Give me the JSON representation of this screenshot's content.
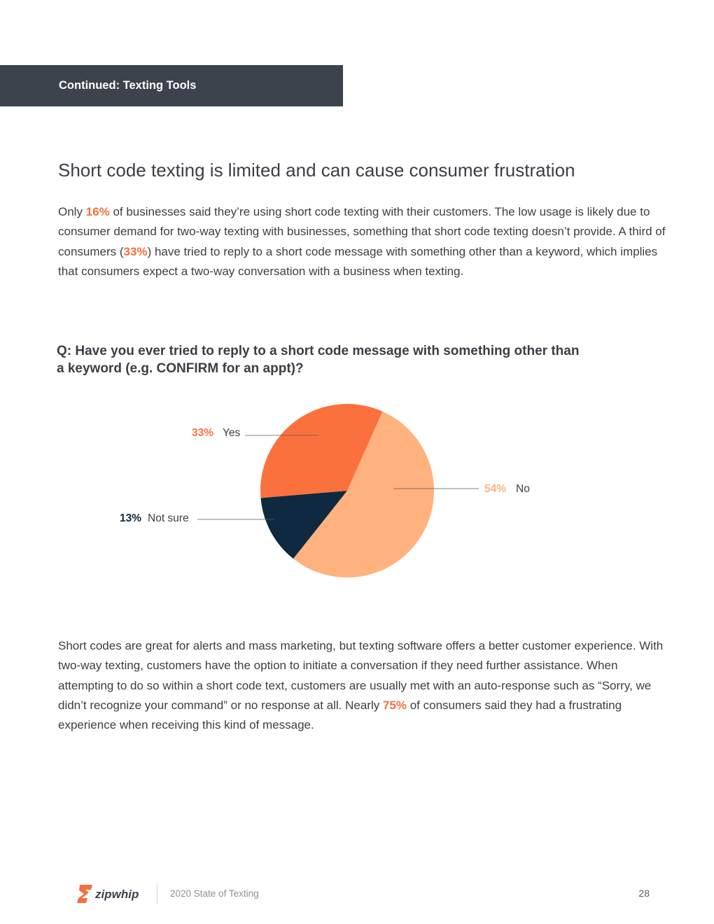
{
  "banner": {
    "title": "Continued: Texting Tools"
  },
  "heading": "Short code texting is limited and can cause consumer frustration",
  "intro": {
    "t1": "Only ",
    "h1": "16%",
    "t2": " of businesses said they’re using short code texting with their customers. The low usage is likely due to consumer demand for two-way texting with businesses, something that short code texting doesn’t provide. A third of consumers (",
    "h2": "33%",
    "t3": ") have tried to reply to a short code message with something other than a keyword, which implies that consumers expect a two-way conversation with a business when texting."
  },
  "question": {
    "line1": "Q: Have you ever tried to reply to a short code message with something other than",
    "line2": "a keyword (e.g. CONFIRM for an appt)?"
  },
  "chart_data": {
    "type": "pie",
    "slices": [
      {
        "label": "No",
        "pct_text": "54%",
        "value": 54,
        "color": "#ffb27e"
      },
      {
        "label": "Not sure",
        "pct_text": "13%",
        "value": 13,
        "color": "#0f2a40"
      },
      {
        "label": "Yes",
        "pct_text": "33%",
        "value": 33,
        "color": "#fb713e"
      }
    ]
  },
  "closing": {
    "t1": "Short codes are great for alerts and mass marketing, but texting software offers a better customer experience. With two-way texting, customers have the option to initiate a conversation if they need further assistance. When attempting to do so within a short code text, customers are usually met with an auto-response such as “Sorry, we didn’t recognize your command” or no response at all. Nearly ",
    "h1": "75%",
    "t2": " of consumers said they had a frustrating experience when receiving this kind of message."
  },
  "footer": {
    "brand": "zipwhip",
    "doc_title": "2020 State of Texting",
    "page_number": "28",
    "brand_color": "#f26f3d"
  }
}
